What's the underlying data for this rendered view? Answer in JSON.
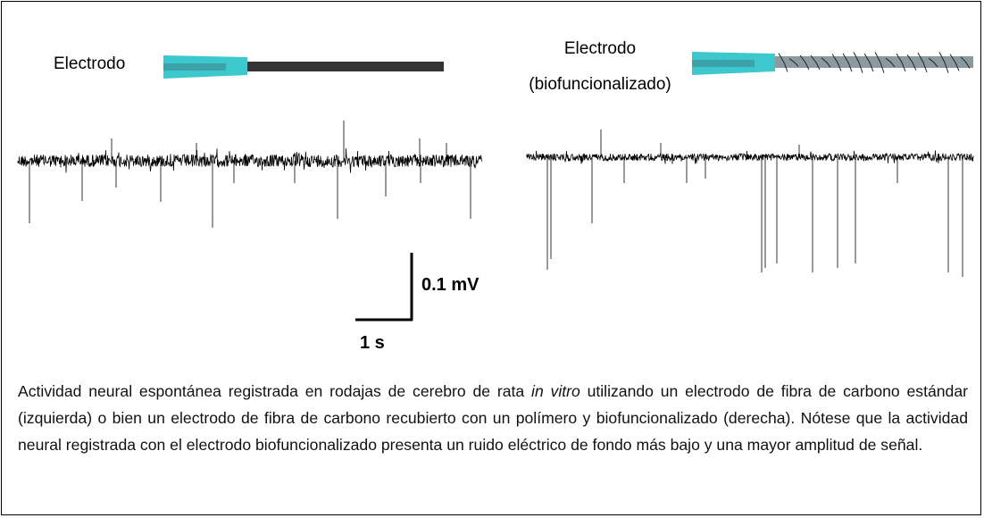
{
  "labels": {
    "left_electrode": "Electrodo",
    "right_electrode_lines": [
      "Electrodo",
      "(biofuncionalizado)"
    ]
  },
  "scale_bar": {
    "vertical": "0.1 mV",
    "horizontal": "1 s"
  },
  "caption": {
    "before": "Actividad neural espontánea registrada en rodajas de cerebro de rata ",
    "italic": "in vitro",
    "after": " utilizando un electrodo de fibra de carbono estándar (izquierda) o bien un electrodo de fibra de carbono recubierto con un polímero y biofuncionalizado (derecha). Nótese que la actividad neural registrada con el electrodo biofuncionalizado presenta un ruido eléctrico de fondo más bajo y una mayor amplitud de señal."
  }
}
